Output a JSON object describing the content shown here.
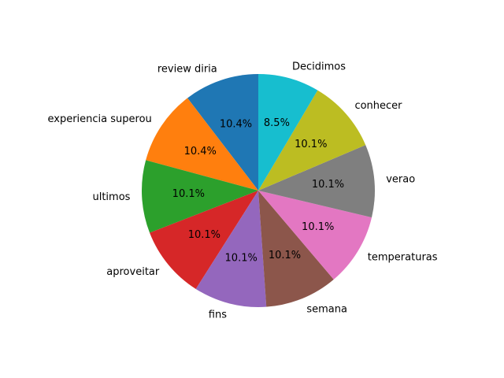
{
  "chart_data": {
    "type": "pie",
    "title": "",
    "start_angle_deg": 90,
    "direction": "counterclockwise",
    "slices": [
      {
        "label": "review diria",
        "value": 10.4,
        "pct_label": "10.4%",
        "color": "#1f77b4"
      },
      {
        "label": "experiencia superou",
        "value": 10.4,
        "pct_label": "10.4%",
        "color": "#ff7f0e"
      },
      {
        "label": "ultimos",
        "value": 10.1,
        "pct_label": "10.1%",
        "color": "#2ca02c"
      },
      {
        "label": "aproveitar",
        "value": 10.1,
        "pct_label": "10.1%",
        "color": "#d62728"
      },
      {
        "label": "fins",
        "value": 10.1,
        "pct_label": "10.1%",
        "color": "#9467bd"
      },
      {
        "label": "semana",
        "value": 10.1,
        "pct_label": "10.1%",
        "color": "#8c564b"
      },
      {
        "label": "temperaturas",
        "value": 10.1,
        "pct_label": "10.1%",
        "color": "#e377c2"
      },
      {
        "label": "verao",
        "value": 10.1,
        "pct_label": "10.1%",
        "color": "#7f7f7f"
      },
      {
        "label": "conhecer",
        "value": 10.1,
        "pct_label": "10.1%",
        "color": "#bcbd22"
      },
      {
        "label": "Decidimos",
        "value": 8.5,
        "pct_label": "8.5%",
        "color": "#17becf"
      }
    ]
  }
}
